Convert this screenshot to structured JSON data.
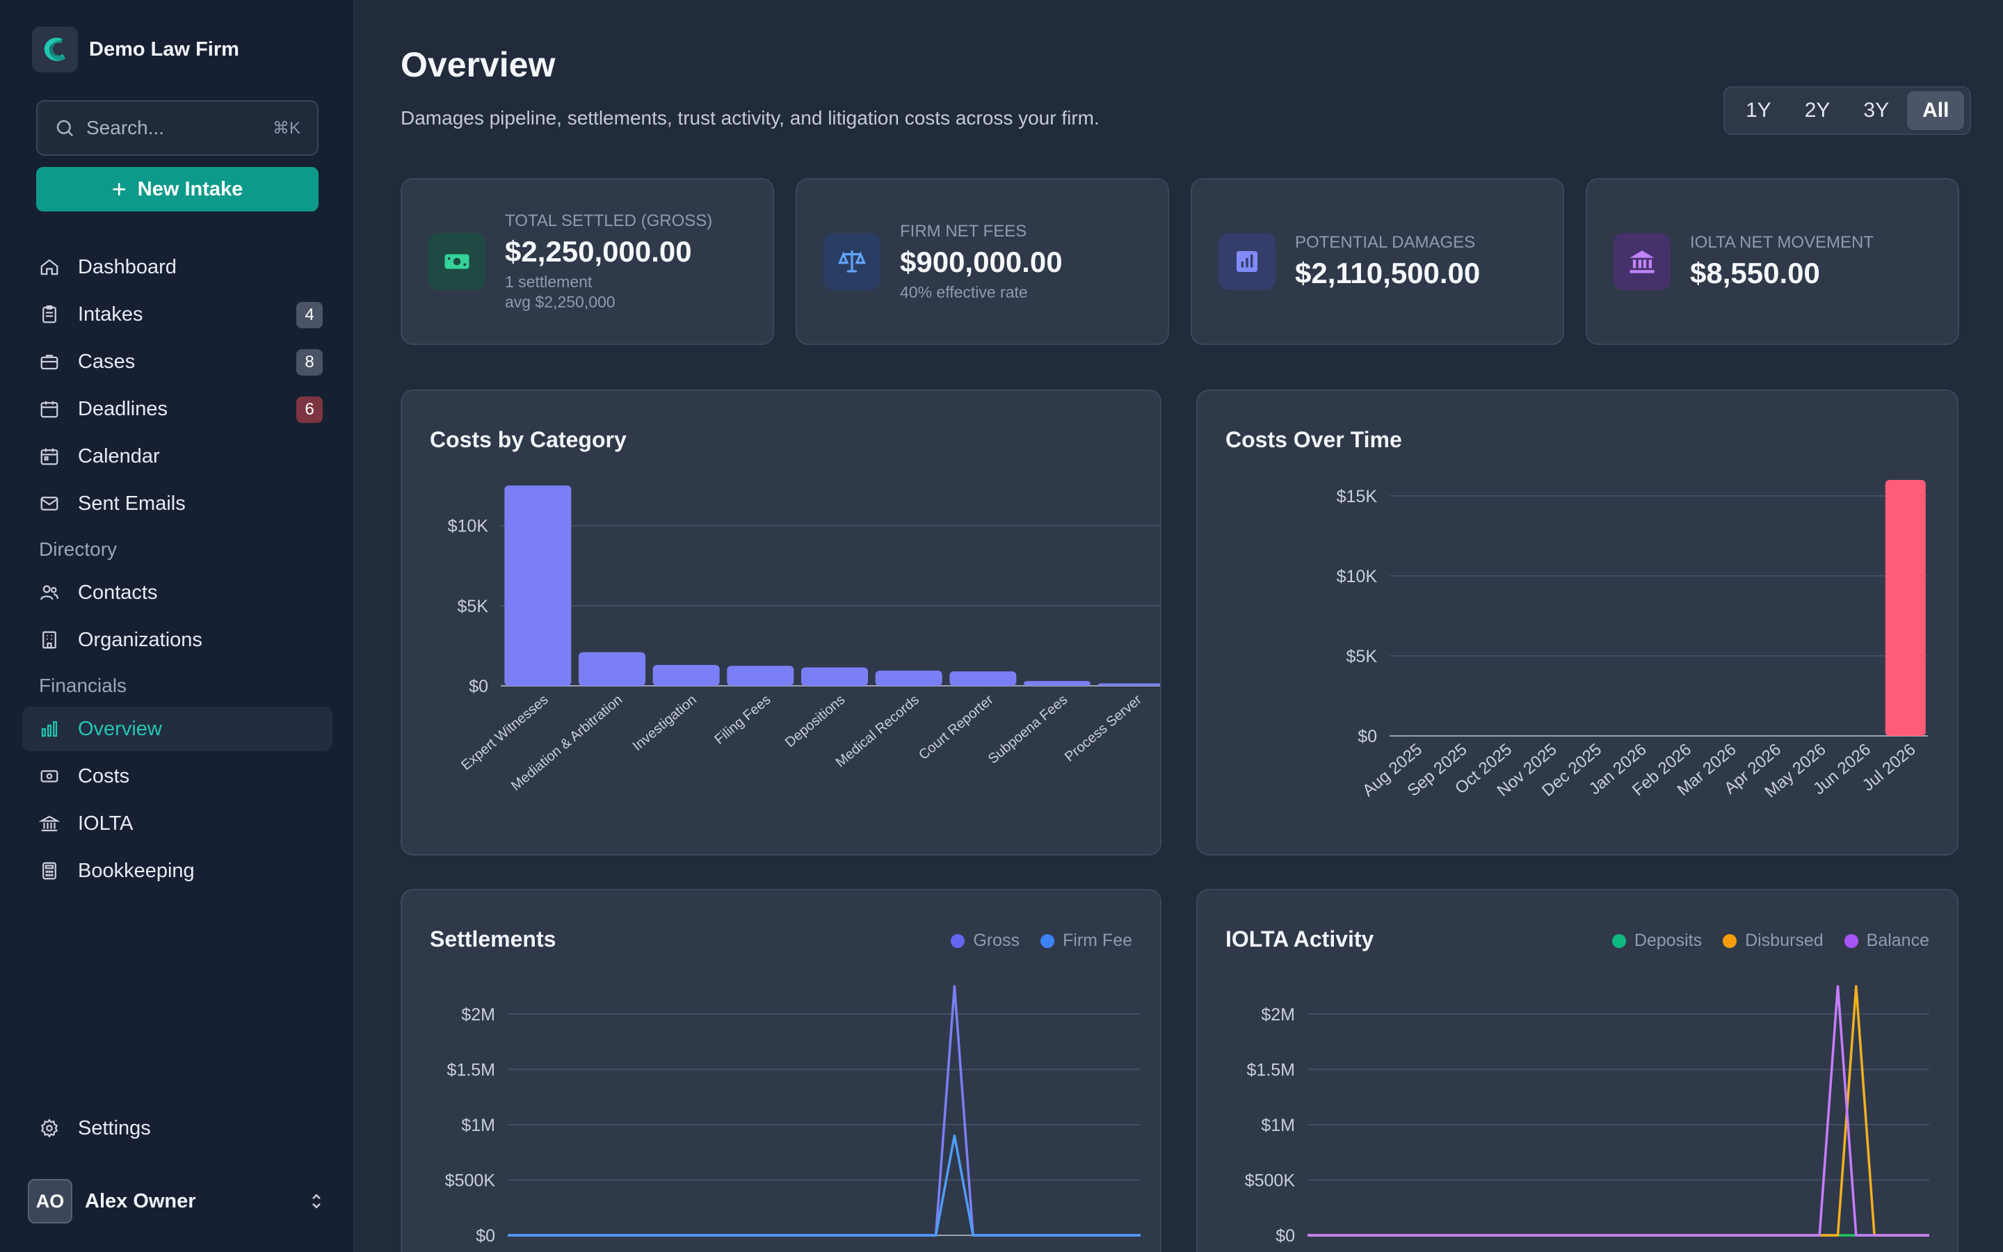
{
  "brand": {
    "name": "Demo Law Firm"
  },
  "search": {
    "placeholder": "Search...",
    "shortcut": "⌘K"
  },
  "new_intake": {
    "label": "New Intake"
  },
  "nav": {
    "main": [
      {
        "label": "Dashboard",
        "icon": "home-icon"
      },
      {
        "label": "Intakes",
        "icon": "clipboard-icon",
        "badge": "4"
      },
      {
        "label": "Cases",
        "icon": "briefcase-icon",
        "badge": "8"
      },
      {
        "label": "Deadlines",
        "icon": "calendar-clock-icon",
        "badge": "6"
      },
      {
        "label": "Calendar",
        "icon": "calendar-icon"
      },
      {
        "label": "Sent Emails",
        "icon": "mail-icon"
      }
    ],
    "directory_label": "Directory",
    "directory": [
      {
        "label": "Contacts",
        "icon": "users-icon"
      },
      {
        "label": "Organizations",
        "icon": "building-icon"
      }
    ],
    "financials_label": "Financials",
    "financials": [
      {
        "label": "Overview",
        "icon": "bar-chart-icon"
      },
      {
        "label": "Costs",
        "icon": "banknote-icon"
      },
      {
        "label": "IOLTA",
        "icon": "bank-icon"
      },
      {
        "label": "Bookkeeping",
        "icon": "calculator-icon"
      }
    ],
    "settings": "Settings"
  },
  "user": {
    "initials": "AO",
    "name": "Alex Owner"
  },
  "page": {
    "title": "Overview",
    "subtitle": "Damages pipeline, settlements, trust activity, and litigation costs across your firm."
  },
  "ranges": [
    "1Y",
    "2Y",
    "3Y",
    "All"
  ],
  "active_range": "All",
  "stats": [
    {
      "label": "TOTAL SETTLED (GROSS)",
      "value": "$2,250,000.00",
      "sub1": "1 settlement",
      "sub2": "avg $2,250,000",
      "color": "#34d399",
      "icon": "money-icon"
    },
    {
      "label": "FIRM NET FEES",
      "value": "$900,000.00",
      "sub1": "40% effective rate",
      "color": "#60a5fa",
      "icon": "scale-icon"
    },
    {
      "label": "POTENTIAL DAMAGES",
      "value": "$2,110,500.00",
      "color": "#818cf8",
      "icon": "chart-icon"
    },
    {
      "label": "IOLTA NET MOVEMENT",
      "value": "$8,550.00",
      "color": "#c084fc",
      "icon": "bank-icon"
    }
  ],
  "charts": {
    "costs_by_category": {
      "title": "Costs by Category"
    },
    "costs_over_time": {
      "title": "Costs Over Time"
    },
    "settlements": {
      "title": "Settlements",
      "legend": [
        "Gross",
        "Firm Fee"
      ]
    },
    "iolta": {
      "title": "IOLTA Activity",
      "legend": [
        "Deposits",
        "Disbursed",
        "Balance"
      ]
    }
  },
  "chart_data": [
    {
      "type": "bar",
      "title": "Costs by Category",
      "categories": [
        "Expert Witnesses",
        "Mediation & Arbitration",
        "Investigation",
        "Filing Fees",
        "Depositions",
        "Medical Records",
        "Court Reporter",
        "Subpoena Fees",
        "Process Server"
      ],
      "values": [
        12500,
        2100,
        1300,
        1250,
        1150,
        950,
        900,
        300,
        150
      ],
      "ylim": [
        0,
        12500
      ],
      "yticks": [
        0,
        5000,
        10000
      ],
      "ytick_labels": [
        "$0",
        "$5K",
        "$10K"
      ],
      "color": "#7b7ff5"
    },
    {
      "type": "bar",
      "title": "Costs Over Time",
      "categories": [
        "Aug 2025",
        "Sep 2025",
        "Oct 2025",
        "Nov 2025",
        "Dec 2025",
        "Jan 2026",
        "Feb 2026",
        "Mar 2026",
        "Apr 2026",
        "May 2026",
        "Jun 2026",
        "Jul 2026"
      ],
      "values": [
        0,
        0,
        0,
        0,
        0,
        0,
        0,
        0,
        0,
        0,
        0,
        16000
      ],
      "ylim": [
        0,
        16000
      ],
      "yticks": [
        0,
        5000,
        10000,
        15000
      ],
      "ytick_labels": [
        "$0",
        "$5K",
        "$10K",
        "$15K"
      ],
      "color": "#ff5c7a"
    },
    {
      "type": "line",
      "title": "Settlements",
      "series": [
        {
          "name": "Gross",
          "color": "#7b7ff5",
          "values": [
            0,
            0,
            0,
            0,
            0,
            0,
            0,
            0,
            0,
            0,
            0,
            0,
            0,
            0,
            0,
            0,
            0,
            0,
            0,
            0,
            0,
            0,
            0,
            0,
            2250000,
            0,
            0,
            0,
            0,
            0,
            0,
            0,
            0,
            0,
            0
          ]
        },
        {
          "name": "Firm Fee",
          "color": "#4f9cf9",
          "values": [
            0,
            0,
            0,
            0,
            0,
            0,
            0,
            0,
            0,
            0,
            0,
            0,
            0,
            0,
            0,
            0,
            0,
            0,
            0,
            0,
            0,
            0,
            0,
            0,
            900000,
            0,
            0,
            0,
            0,
            0,
            0,
            0,
            0,
            0,
            0
          ]
        }
      ],
      "ylim": [
        0,
        2250000
      ],
      "yticks": [
        0,
        500000,
        1000000,
        1500000,
        2000000
      ],
      "ytick_labels": [
        "$0",
        "$500K",
        "$1M",
        "$1.5M",
        "$2M"
      ]
    },
    {
      "type": "line",
      "title": "IOLTA Activity",
      "series": [
        {
          "name": "Deposits",
          "color": "#22c55e",
          "values": [
            0,
            0,
            0,
            0,
            0,
            0,
            0,
            0,
            0,
            0,
            0,
            0,
            0,
            0,
            0,
            0,
            0,
            0,
            0,
            0,
            0,
            0,
            0,
            0,
            0,
            0,
            0,
            0,
            0,
            0,
            0,
            0,
            0,
            0,
            0
          ]
        },
        {
          "name": "Disbursed",
          "color": "#f5b01e",
          "values": [
            0,
            0,
            0,
            0,
            0,
            0,
            0,
            0,
            0,
            0,
            0,
            0,
            0,
            0,
            0,
            0,
            0,
            0,
            0,
            0,
            0,
            0,
            0,
            0,
            0,
            0,
            0,
            0,
            0,
            0,
            2250000,
            0,
            0,
            0,
            0
          ]
        },
        {
          "name": "Balance",
          "color": "#c77dff",
          "values": [
            0,
            0,
            0,
            0,
            0,
            0,
            0,
            0,
            0,
            0,
            0,
            0,
            0,
            0,
            0,
            0,
            0,
            0,
            0,
            0,
            0,
            0,
            0,
            0,
            0,
            0,
            0,
            0,
            0,
            2250000,
            0,
            0,
            0,
            0,
            0
          ]
        }
      ],
      "ylim": [
        0,
        2250000
      ],
      "yticks": [
        0,
        500000,
        1000000,
        1500000,
        2000000
      ],
      "ytick_labels": [
        "$0",
        "$500K",
        "$1M",
        "$1.5M",
        "$2M"
      ]
    }
  ]
}
